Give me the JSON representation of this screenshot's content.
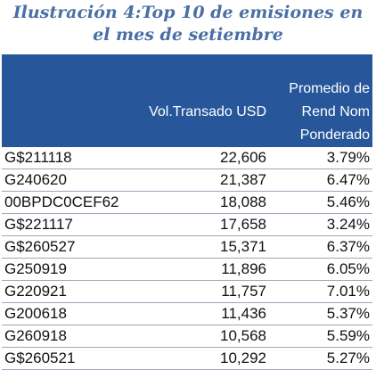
{
  "title": {
    "line1": "Ilustración 4:Top 10 de emisiones en",
    "line2": "el mes de setiembre"
  },
  "table": {
    "headers": {
      "col1": "",
      "col2": "Vol.Transado USD",
      "col3_line1": "Promedio de",
      "col3_line2": "Rend Nom",
      "col3_line3": "Ponderado"
    },
    "rows": [
      {
        "code": "G$211118",
        "vol": "22,606",
        "rend": "3.79%"
      },
      {
        "code": "G240620",
        "vol": "21,387",
        "rend": "6.47%"
      },
      {
        "code": "00BPDC0CEF62",
        "vol": "18,088",
        "rend": "5.46%"
      },
      {
        "code": "G$221117",
        "vol": "17,658",
        "rend": "3.24%"
      },
      {
        "code": "G$260527",
        "vol": "15,371",
        "rend": "6.37%"
      },
      {
        "code": "G250919",
        "vol": "11,896",
        "rend": "6.05%"
      },
      {
        "code": "G220921",
        "vol": "11,757",
        "rend": "7.01%"
      },
      {
        "code": "G200618",
        "vol": "11,436",
        "rend": "5.37%"
      },
      {
        "code": "G260918",
        "vol": "10,568",
        "rend": "5.59%"
      },
      {
        "code": "G$260521",
        "vol": "10,292",
        "rend": "5.27%"
      }
    ]
  },
  "colors": {
    "title": "#4a6fa5",
    "header_bg": "#27579a",
    "header_text": "#ffffff",
    "row_border": "#9aa7bd"
  }
}
